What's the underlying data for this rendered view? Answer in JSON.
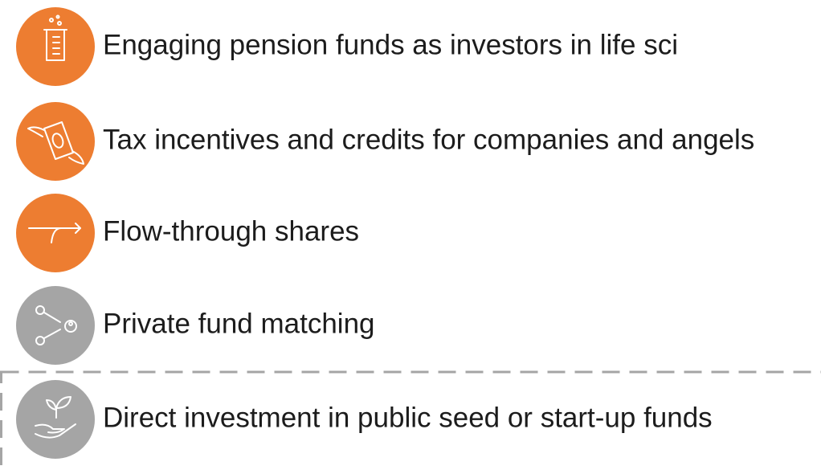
{
  "items": [
    {
      "label": "Engaging pension funds as investors in life sci"
    },
    {
      "label": "Tax incentives and credits for companies and angels"
    },
    {
      "label": "Flow-through shares"
    },
    {
      "label": "Private fund matching"
    },
    {
      "label": "Direct investment in public seed or start-up funds"
    }
  ]
}
